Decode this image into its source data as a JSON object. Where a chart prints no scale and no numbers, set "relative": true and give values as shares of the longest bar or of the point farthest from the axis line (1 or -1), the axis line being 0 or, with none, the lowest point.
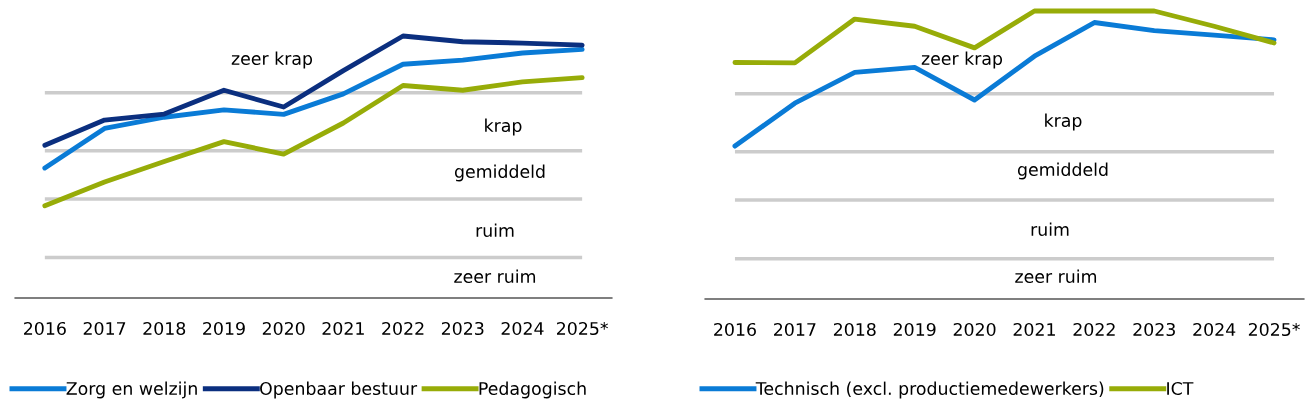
{
  "chart_data": [
    {
      "type": "line",
      "relative": true,
      "categories": [
        "2016",
        "2017",
        "2018",
        "2019",
        "2020",
        "2021",
        "2022",
        "2023",
        "2024",
        "2025*"
      ],
      "series": [
        {
          "name": "Zorg en welzijn",
          "color": "#0a7bd6",
          "values": [
            0.496,
            0.647,
            0.69,
            0.718,
            0.701,
            0.779,
            0.892,
            0.908,
            0.935,
            0.949
          ]
        },
        {
          "name": "Openbaar bestuur",
          "color": "#0b2f7f",
          "values": [
            0.583,
            0.679,
            0.702,
            0.793,
            0.729,
            0.868,
            1,
            0.978,
            0.973,
            0.965
          ]
        },
        {
          "name": "Pedagogisch",
          "color": "#97ac08",
          "values": [
            0.352,
            0.443,
            0.521,
            0.597,
            0.549,
            0.668,
            0.811,
            0.793,
            0.825,
            0.841
          ]
        }
      ],
      "ref_lines": [
        {
          "axis": "y",
          "value": 0.783,
          "color": "#cccccc"
        },
        {
          "axis": "y",
          "value": 0.562,
          "color": "#cccccc"
        },
        {
          "axis": "y",
          "value": 0.378,
          "color": "#cccccc"
        },
        {
          "axis": "y",
          "value": 0.155,
          "color": "#cccccc"
        }
      ],
      "annotations": [
        "zeer krap",
        "krap",
        "gemiddeld",
        "ruim",
        "zeer ruim"
      ],
      "grid": false,
      "legend": "bottom",
      "tick_labels": "x",
      "marker": "none",
      "line_style": "solid"
    },
    {
      "type": "line",
      "relative": true,
      "categories": [
        "2016",
        "2017",
        "2018",
        "2019",
        "2020",
        "2021",
        "2022",
        "2023",
        "2024",
        "2025*"
      ],
      "series": [
        {
          "name": "Technisch (excl. productiemedewerkers)",
          "color": "#0a7bd6",
          "values": [
            0.531,
            0.68,
            0.787,
            0.804,
            0.691,
            0.843,
            0.96,
            0.932,
            0.916,
            0.9
          ]
        },
        {
          "name": "ICT",
          "color": "#97ac08",
          "values": [
            0.821,
            0.82,
            0.972,
            0.947,
            0.872,
            1,
            1,
            1,
            0.947,
            0.889
          ]
        }
      ],
      "ref_lines": [
        {
          "axis": "y",
          "value": 0.713,
          "color": "#cccccc"
        },
        {
          "axis": "y",
          "value": 0.511,
          "color": "#cccccc"
        },
        {
          "axis": "y",
          "value": 0.344,
          "color": "#cccccc"
        },
        {
          "axis": "y",
          "value": 0.14,
          "color": "#cccccc"
        }
      ],
      "annotations": [
        "zeer krap",
        "krap",
        "gemiddeld",
        "ruim",
        "zeer ruim"
      ],
      "grid": false,
      "legend": "bottom",
      "tick_labels": "x",
      "marker": "none",
      "line_style": "solid"
    }
  ]
}
